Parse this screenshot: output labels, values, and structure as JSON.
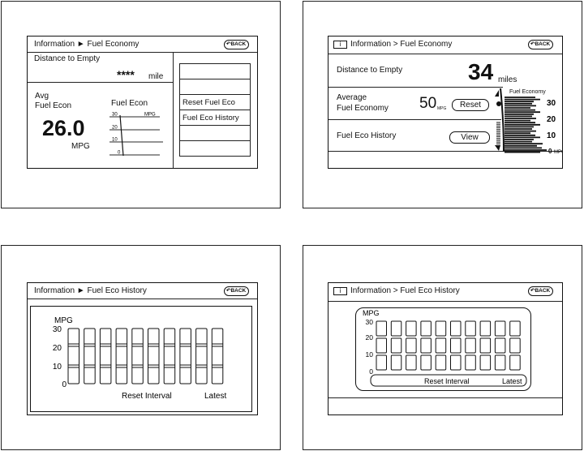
{
  "panel1": {
    "breadcrumb": "Information ► Fuel Economy",
    "back_label": "BACK",
    "distance_label": "Distance to Empty",
    "distance_value": "****",
    "distance_unit": "mile",
    "avg_label_1": "Avg",
    "avg_label_2": "Fuel Econ",
    "avg_value": "26.0",
    "avg_unit": "MPG",
    "chart_title": "Fuel Econ",
    "chart_unit": "MPG",
    "chart_ticks": [
      "30",
      "20",
      "10",
      "0"
    ],
    "menu": [
      "",
      "",
      "Reset Fuel Eco",
      "Fuel Eco History",
      "",
      ""
    ]
  },
  "panel2": {
    "breadcrumb": "Information > Fuel Economy",
    "info_icon": "i",
    "back_label": "BACK",
    "distance_label": "Distance to Empty",
    "distance_value": "34",
    "distance_unit": "miles",
    "avg_label_1": "Average",
    "avg_label_2": "Fuel Economy",
    "avg_value": "50",
    "avg_unit": "MPG",
    "reset_label": "Reset",
    "history_label": "Fuel Eco History",
    "view_label": "View",
    "gauge_title": "Fuel Economy",
    "gauge_ticks": [
      "30",
      "20",
      "10",
      "0"
    ],
    "gauge_unit": "MPG"
  },
  "panel3": {
    "breadcrumb": "Information ► Fuel Eco History",
    "back_label": "BACK",
    "y_label": "MPG",
    "y_ticks": [
      "30",
      "20",
      "10",
      "0"
    ],
    "bar_count": 10,
    "x_label": "Reset Interval",
    "latest_label": "Latest"
  },
  "panel4": {
    "breadcrumb": "Information > Fuel Eco History",
    "info_icon": "i",
    "back_label": "BACK",
    "y_label": "MPG",
    "y_ticks": [
      "30",
      "20",
      "10",
      "0"
    ],
    "bar_count": 10,
    "x_label": "Reset Interval",
    "latest_label": "Latest"
  }
}
